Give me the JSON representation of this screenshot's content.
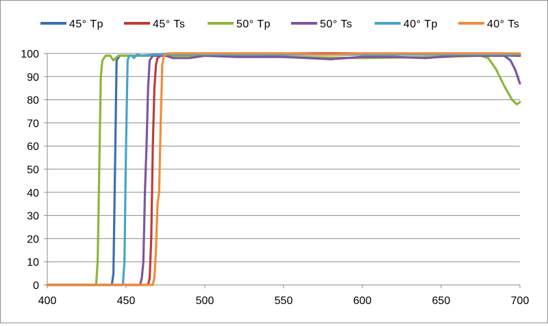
{
  "chart_data": {
    "type": "line",
    "title": "",
    "xlabel": "",
    "ylabel": "",
    "xlim": [
      400,
      700
    ],
    "ylim": [
      0,
      100
    ],
    "x_ticks": [
      400,
      450,
      500,
      550,
      600,
      650,
      700
    ],
    "y_ticks": [
      0,
      10,
      20,
      30,
      40,
      50,
      60,
      70,
      80,
      90,
      100
    ],
    "grid": "horizontal",
    "legend_position": "top",
    "series": [
      {
        "name": "45° Tp",
        "color": "#3a6fb0",
        "points": [
          [
            400,
            0
          ],
          [
            441,
            0
          ],
          [
            442,
            5
          ],
          [
            443,
            50
          ],
          [
            444,
            97
          ],
          [
            446,
            99
          ],
          [
            450,
            99
          ],
          [
            460,
            99
          ],
          [
            480,
            100
          ],
          [
            500,
            99
          ],
          [
            550,
            99.5
          ],
          [
            600,
            99.5
          ],
          [
            650,
            99.5
          ],
          [
            700,
            99
          ]
        ]
      },
      {
        "name": "45° Ts",
        "color": "#be3b3b",
        "points": [
          [
            400,
            0
          ],
          [
            464,
            0
          ],
          [
            465,
            3
          ],
          [
            466,
            20
          ],
          [
            467,
            60
          ],
          [
            468,
            85
          ],
          [
            469,
            95
          ],
          [
            470,
            98
          ],
          [
            472,
            99
          ],
          [
            480,
            100
          ],
          [
            550,
            100
          ],
          [
            600,
            100
          ],
          [
            650,
            100
          ],
          [
            690,
            100
          ],
          [
            700,
            99
          ]
        ]
      },
      {
        "name": "50° Tp",
        "color": "#8fb43c",
        "points": [
          [
            400,
            0
          ],
          [
            431,
            0
          ],
          [
            432,
            10
          ],
          [
            433,
            50
          ],
          [
            434,
            90
          ],
          [
            435,
            97
          ],
          [
            437,
            99
          ],
          [
            440,
            99
          ],
          [
            442,
            97
          ],
          [
            445,
            99
          ],
          [
            450,
            99
          ],
          [
            500,
            99
          ],
          [
            550,
            98.5
          ],
          [
            600,
            98
          ],
          [
            650,
            98.5
          ],
          [
            675,
            99
          ],
          [
            680,
            98
          ],
          [
            685,
            93
          ],
          [
            690,
            86
          ],
          [
            695,
            80
          ],
          [
            698,
            78
          ],
          [
            700,
            79
          ]
        ]
      },
      {
        "name": "50° Ts",
        "color": "#7b559e",
        "points": [
          [
            400,
            0
          ],
          [
            459,
            0
          ],
          [
            460,
            3
          ],
          [
            461,
            10
          ],
          [
            462,
            40
          ],
          [
            463,
            60
          ],
          [
            464,
            85
          ],
          [
            465,
            97
          ],
          [
            467,
            99
          ],
          [
            470,
            99
          ],
          [
            475,
            99
          ],
          [
            480,
            98
          ],
          [
            490,
            98
          ],
          [
            500,
            99
          ],
          [
            520,
            98.5
          ],
          [
            550,
            98.5
          ],
          [
            580,
            97.5
          ],
          [
            600,
            98.5
          ],
          [
            620,
            98.5
          ],
          [
            640,
            98
          ],
          [
            660,
            99
          ],
          [
            680,
            99
          ],
          [
            690,
            99
          ],
          [
            694,
            97
          ],
          [
            697,
            93
          ],
          [
            700,
            87
          ]
        ]
      },
      {
        "name": "40° Tp",
        "color": "#47a4c6",
        "points": [
          [
            400,
            0
          ],
          [
            448,
            0
          ],
          [
            449,
            10
          ],
          [
            450,
            60
          ],
          [
            451,
            97
          ],
          [
            452,
            99
          ],
          [
            454,
            99
          ],
          [
            455,
            98
          ],
          [
            457,
            99.5
          ],
          [
            460,
            99
          ],
          [
            470,
            99.5
          ],
          [
            500,
            99.5
          ],
          [
            550,
            99.5
          ],
          [
            600,
            99.5
          ],
          [
            650,
            99.5
          ],
          [
            700,
            99.5
          ]
        ]
      },
      {
        "name": "40° Ts",
        "color": "#f08c3a",
        "points": [
          [
            400,
            0
          ],
          [
            467,
            0
          ],
          [
            468,
            3
          ],
          [
            469,
            15
          ],
          [
            470,
            35
          ],
          [
            471,
            40
          ],
          [
            472,
            70
          ],
          [
            473,
            95
          ],
          [
            474,
            99
          ],
          [
            476,
            100
          ],
          [
            500,
            100
          ],
          [
            550,
            100
          ],
          [
            580,
            99.5
          ],
          [
            600,
            100
          ],
          [
            650,
            100
          ],
          [
            700,
            100
          ]
        ]
      }
    ]
  }
}
